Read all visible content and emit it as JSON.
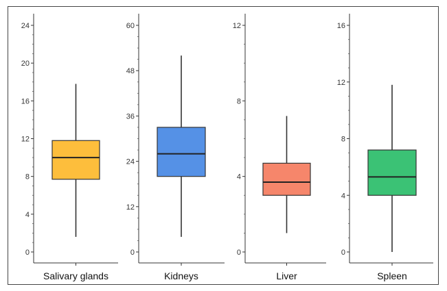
{
  "chart_data": [
    {
      "type": "box",
      "category": "Salivary glands",
      "color": "#FDBE3C",
      "box": {
        "min": 1.6,
        "q1": 7.7,
        "median": 10.0,
        "q3": 11.8,
        "max": 17.8
      },
      "ylim": [
        0,
        24
      ],
      "yticks": [
        0,
        4,
        8,
        12,
        16,
        20,
        24
      ],
      "grid": false
    },
    {
      "type": "box",
      "category": "Kidneys",
      "color": "#5591E6",
      "box": {
        "min": 4,
        "q1": 20,
        "median": 26,
        "q3": 33,
        "max": 52
      },
      "ylim": [
        0,
        60
      ],
      "yticks": [
        0,
        12,
        24,
        36,
        48,
        60
      ],
      "grid": false
    },
    {
      "type": "box",
      "category": "Liver",
      "color": "#F6866B",
      "box": {
        "min": 1.0,
        "q1": 3.0,
        "median": 3.7,
        "q3": 4.7,
        "max": 7.2
      },
      "ylim": [
        0,
        12
      ],
      "yticks": [
        0,
        4,
        8,
        12
      ],
      "grid": false
    },
    {
      "type": "box",
      "category": "Spleen",
      "color": "#3BC275",
      "box": {
        "min": 0.0,
        "q1": 4.0,
        "median": 5.3,
        "q3": 7.2,
        "max": 11.8
      },
      "ylim": [
        0,
        16
      ],
      "yticks": [
        0,
        4,
        8,
        12,
        16
      ],
      "grid": false
    }
  ]
}
